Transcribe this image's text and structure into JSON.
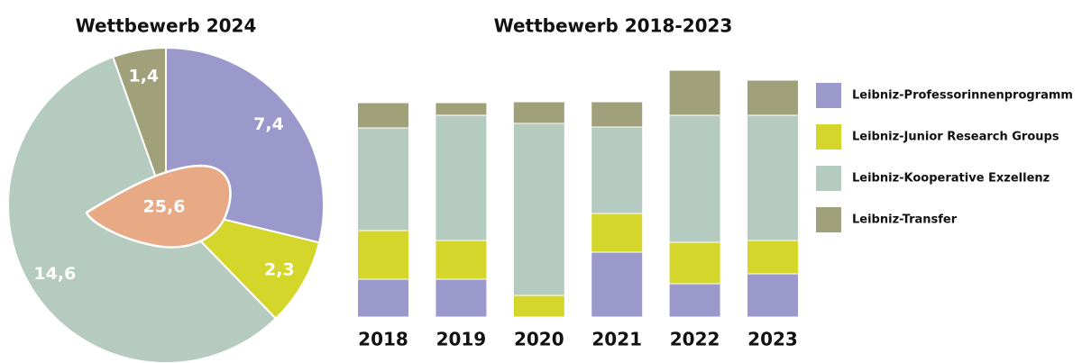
{
  "chart_data": [
    {
      "type": "pie",
      "title": "Wettbewerb 2024",
      "values": [
        7.4,
        2.3,
        14.6,
        1.4
      ],
      "value_labels": [
        "7,4",
        "2,3",
        "14,6",
        "1,4"
      ],
      "colors": [
        "#9b99cb",
        "#d4d62c",
        "#b5cbbf",
        "#a0a07a"
      ],
      "total": 25.6,
      "total_label": "25,6",
      "total_color": "#e8a985"
    },
    {
      "type": "stacked_bar",
      "title": "Wettbewerb 2018-2023",
      "categories": [
        "2018",
        "2019",
        "2020",
        "2021",
        "2022",
        "2023"
      ],
      "series": [
        {
          "name": "Leibniz-Professorinnenprogramm",
          "color": "#9b99cb",
          "values": [
            4.2,
            4.2,
            0,
            7.2,
            3.7,
            4.8
          ]
        },
        {
          "name": "Leibniz-Junior Research Groups",
          "color": "#d4d62c",
          "values": [
            5.4,
            4.3,
            2.4,
            4.3,
            4.6,
            3.7
          ]
        },
        {
          "name": "Leibniz-Kooperative Exzellenz",
          "color": "#b5cbbf",
          "values": [
            11.4,
            13.9,
            19.1,
            9.6,
            14.1,
            13.9
          ]
        },
        {
          "name": "Leibniz-Transfer",
          "color": "#a0a07a",
          "values": [
            2.8,
            1.4,
            2.4,
            2.8,
            5.0,
            3.9
          ]
        }
      ]
    }
  ]
}
